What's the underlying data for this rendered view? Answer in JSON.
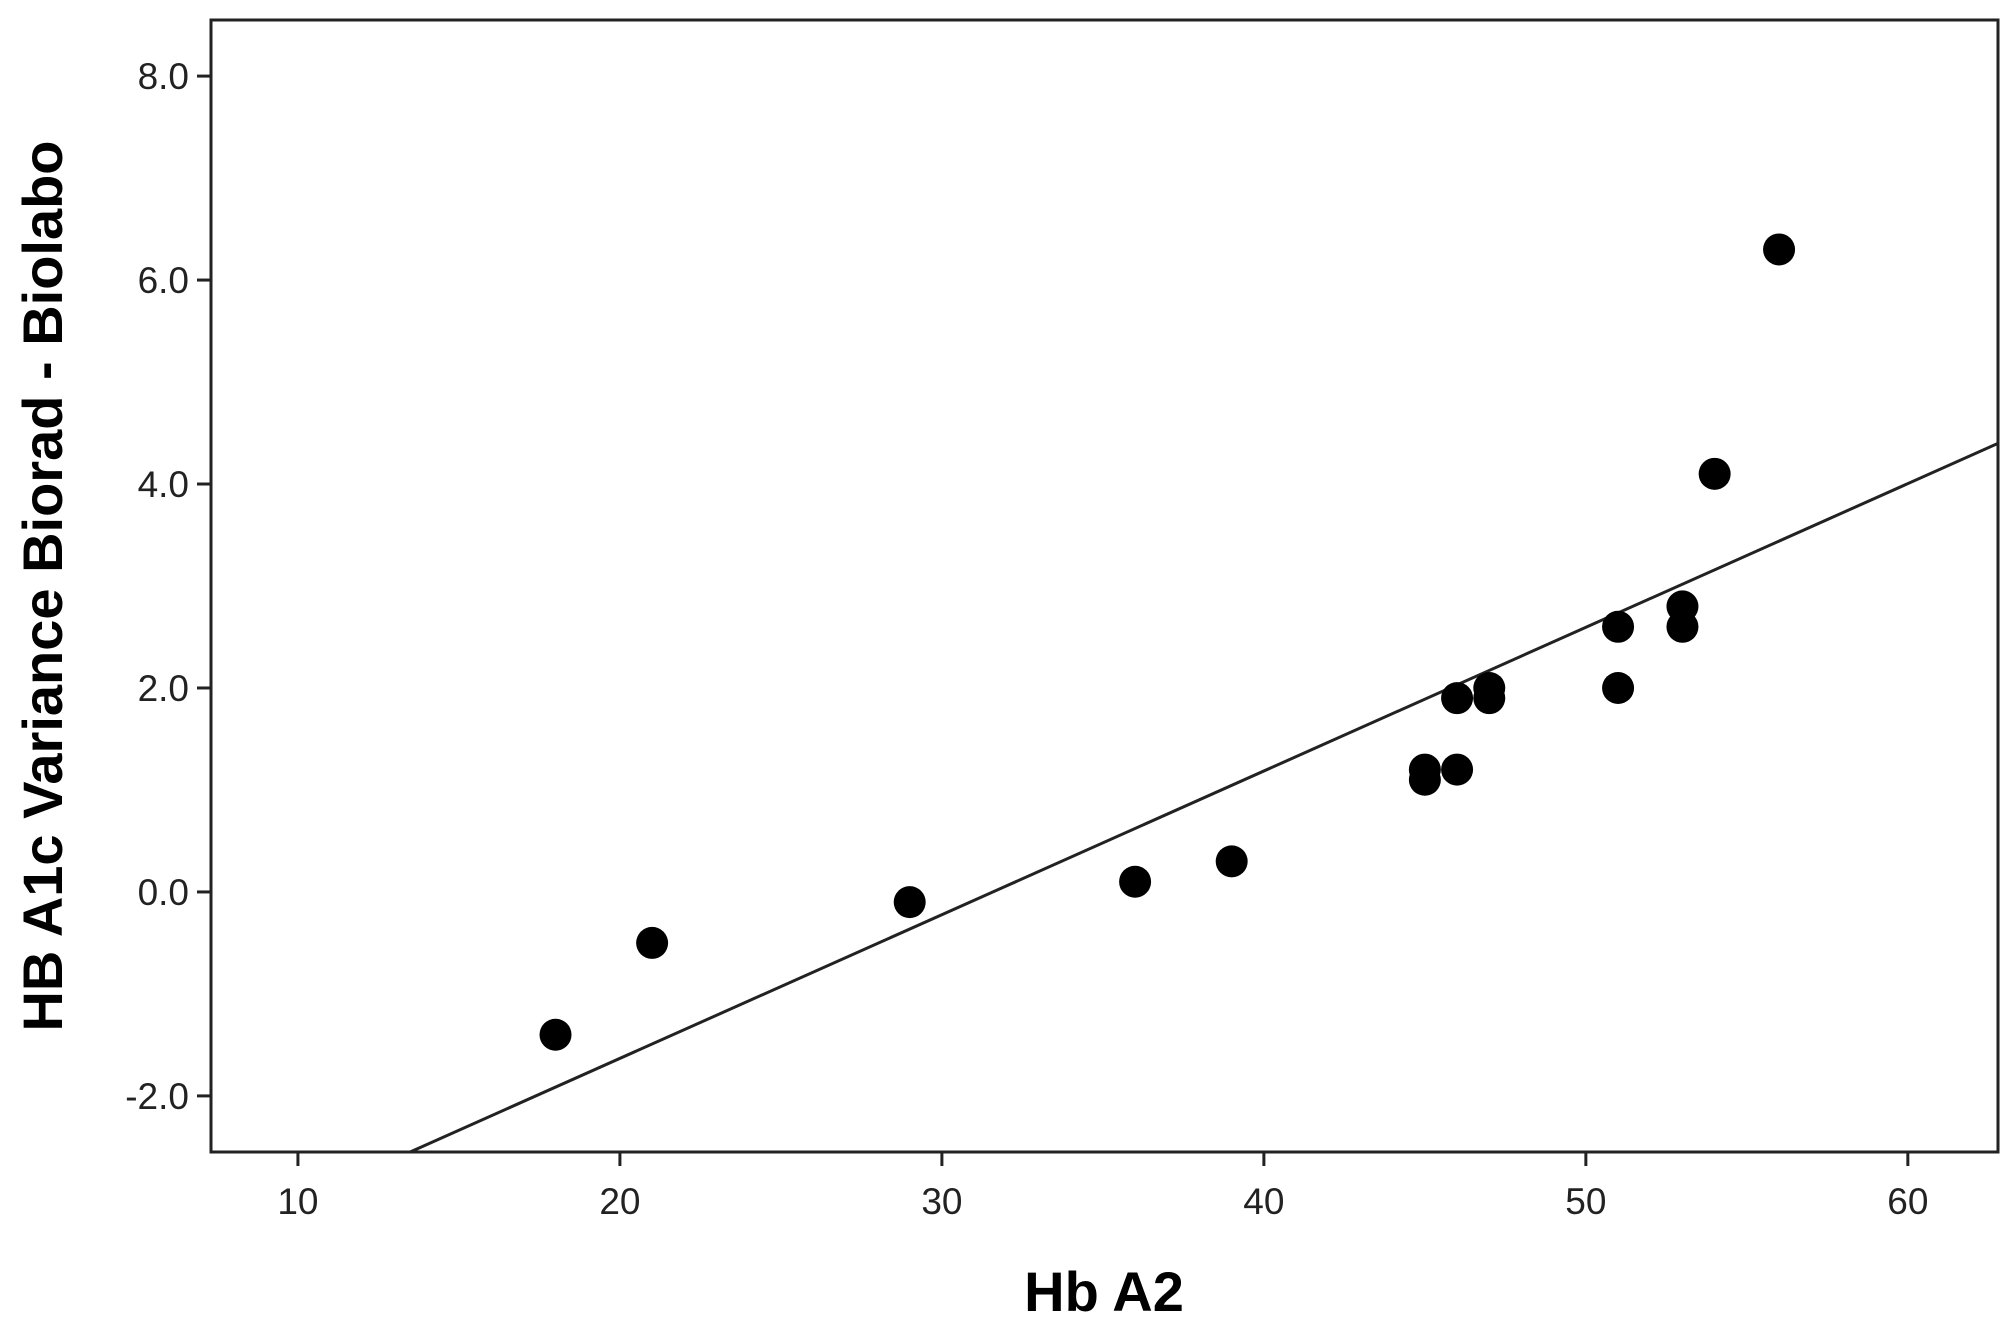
{
  "chart_data": {
    "type": "scatter",
    "title": "",
    "xlabel": "Hb A2",
    "ylabel": "HB A1c Variance Biorad - Biolabo",
    "xlim": [
      7.3,
      62.8
    ],
    "ylim": [
      -2.55,
      8.55
    ],
    "x_ticks": [
      10,
      20,
      30,
      40,
      50,
      60
    ],
    "x_tick_labels": [
      "10",
      "20",
      "30",
      "40",
      "50",
      "60"
    ],
    "y_ticks": [
      -2.0,
      0.0,
      2.0,
      4.0,
      6.0,
      8.0
    ],
    "y_tick_labels": [
      "-2.0",
      "0.0",
      "2.0",
      "4.0",
      "6.0",
      "8.0"
    ],
    "grid": false,
    "legend": "none",
    "point_color": "#000000",
    "line_color": "#222222",
    "series": [
      {
        "points": [
          {
            "x": 18,
            "y": -1.4
          },
          {
            "x": 21,
            "y": -0.5
          },
          {
            "x": 29,
            "y": -0.1
          },
          {
            "x": 36,
            "y": 0.1
          },
          {
            "x": 39,
            "y": 0.3
          },
          {
            "x": 45,
            "y": 1.1
          },
          {
            "x": 45,
            "y": 1.2
          },
          {
            "x": 46,
            "y": 1.2
          },
          {
            "x": 46,
            "y": 1.9
          },
          {
            "x": 47,
            "y": 1.9
          },
          {
            "x": 47,
            "y": 2.0
          },
          {
            "x": 51,
            "y": 2.0
          },
          {
            "x": 51,
            "y": 2.6
          },
          {
            "x": 53,
            "y": 2.6
          },
          {
            "x": 53,
            "y": 2.8
          },
          {
            "x": 54,
            "y": 4.1
          },
          {
            "x": 56,
            "y": 6.3
          }
        ]
      }
    ],
    "fit_line": {
      "slope": 0.1409,
      "intercept": -4.45
    }
  }
}
